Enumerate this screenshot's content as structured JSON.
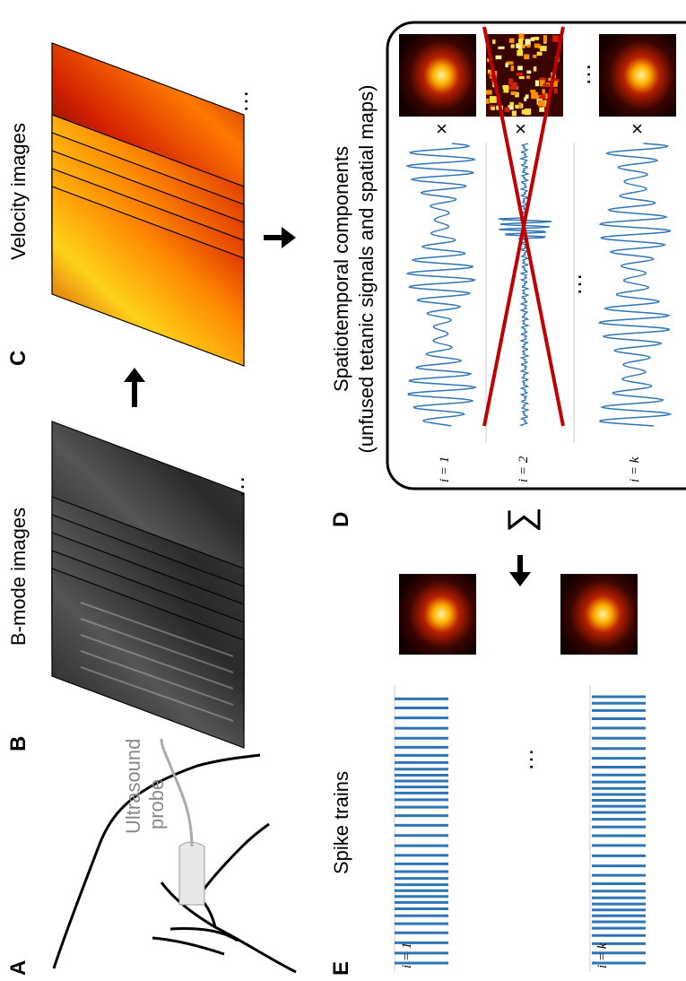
{
  "panel_labels": [
    "A",
    "B",
    "C",
    "D",
    "E"
  ],
  "probe_label": [
    "Ultrasound",
    "probe"
  ],
  "b_title": "B-mode images",
  "c_title": "Velocity images",
  "d_title": [
    "Spatiotemporal components",
    "(unfused tetanic signals and spatial maps)"
  ],
  "d_rows": [
    {
      "index": "i = 1",
      "operator": "×"
    },
    {
      "index": "i = 2",
      "operator": "×"
    },
    {
      "index": "i = k",
      "operator": "×"
    }
  ],
  "sum_symbol": "∑",
  "e_title": "Spike trains",
  "e_rows": [
    "i = 1",
    "i = k"
  ],
  "ellipses": [
    "…",
    "…",
    "…",
    "…",
    "…"
  ]
}
